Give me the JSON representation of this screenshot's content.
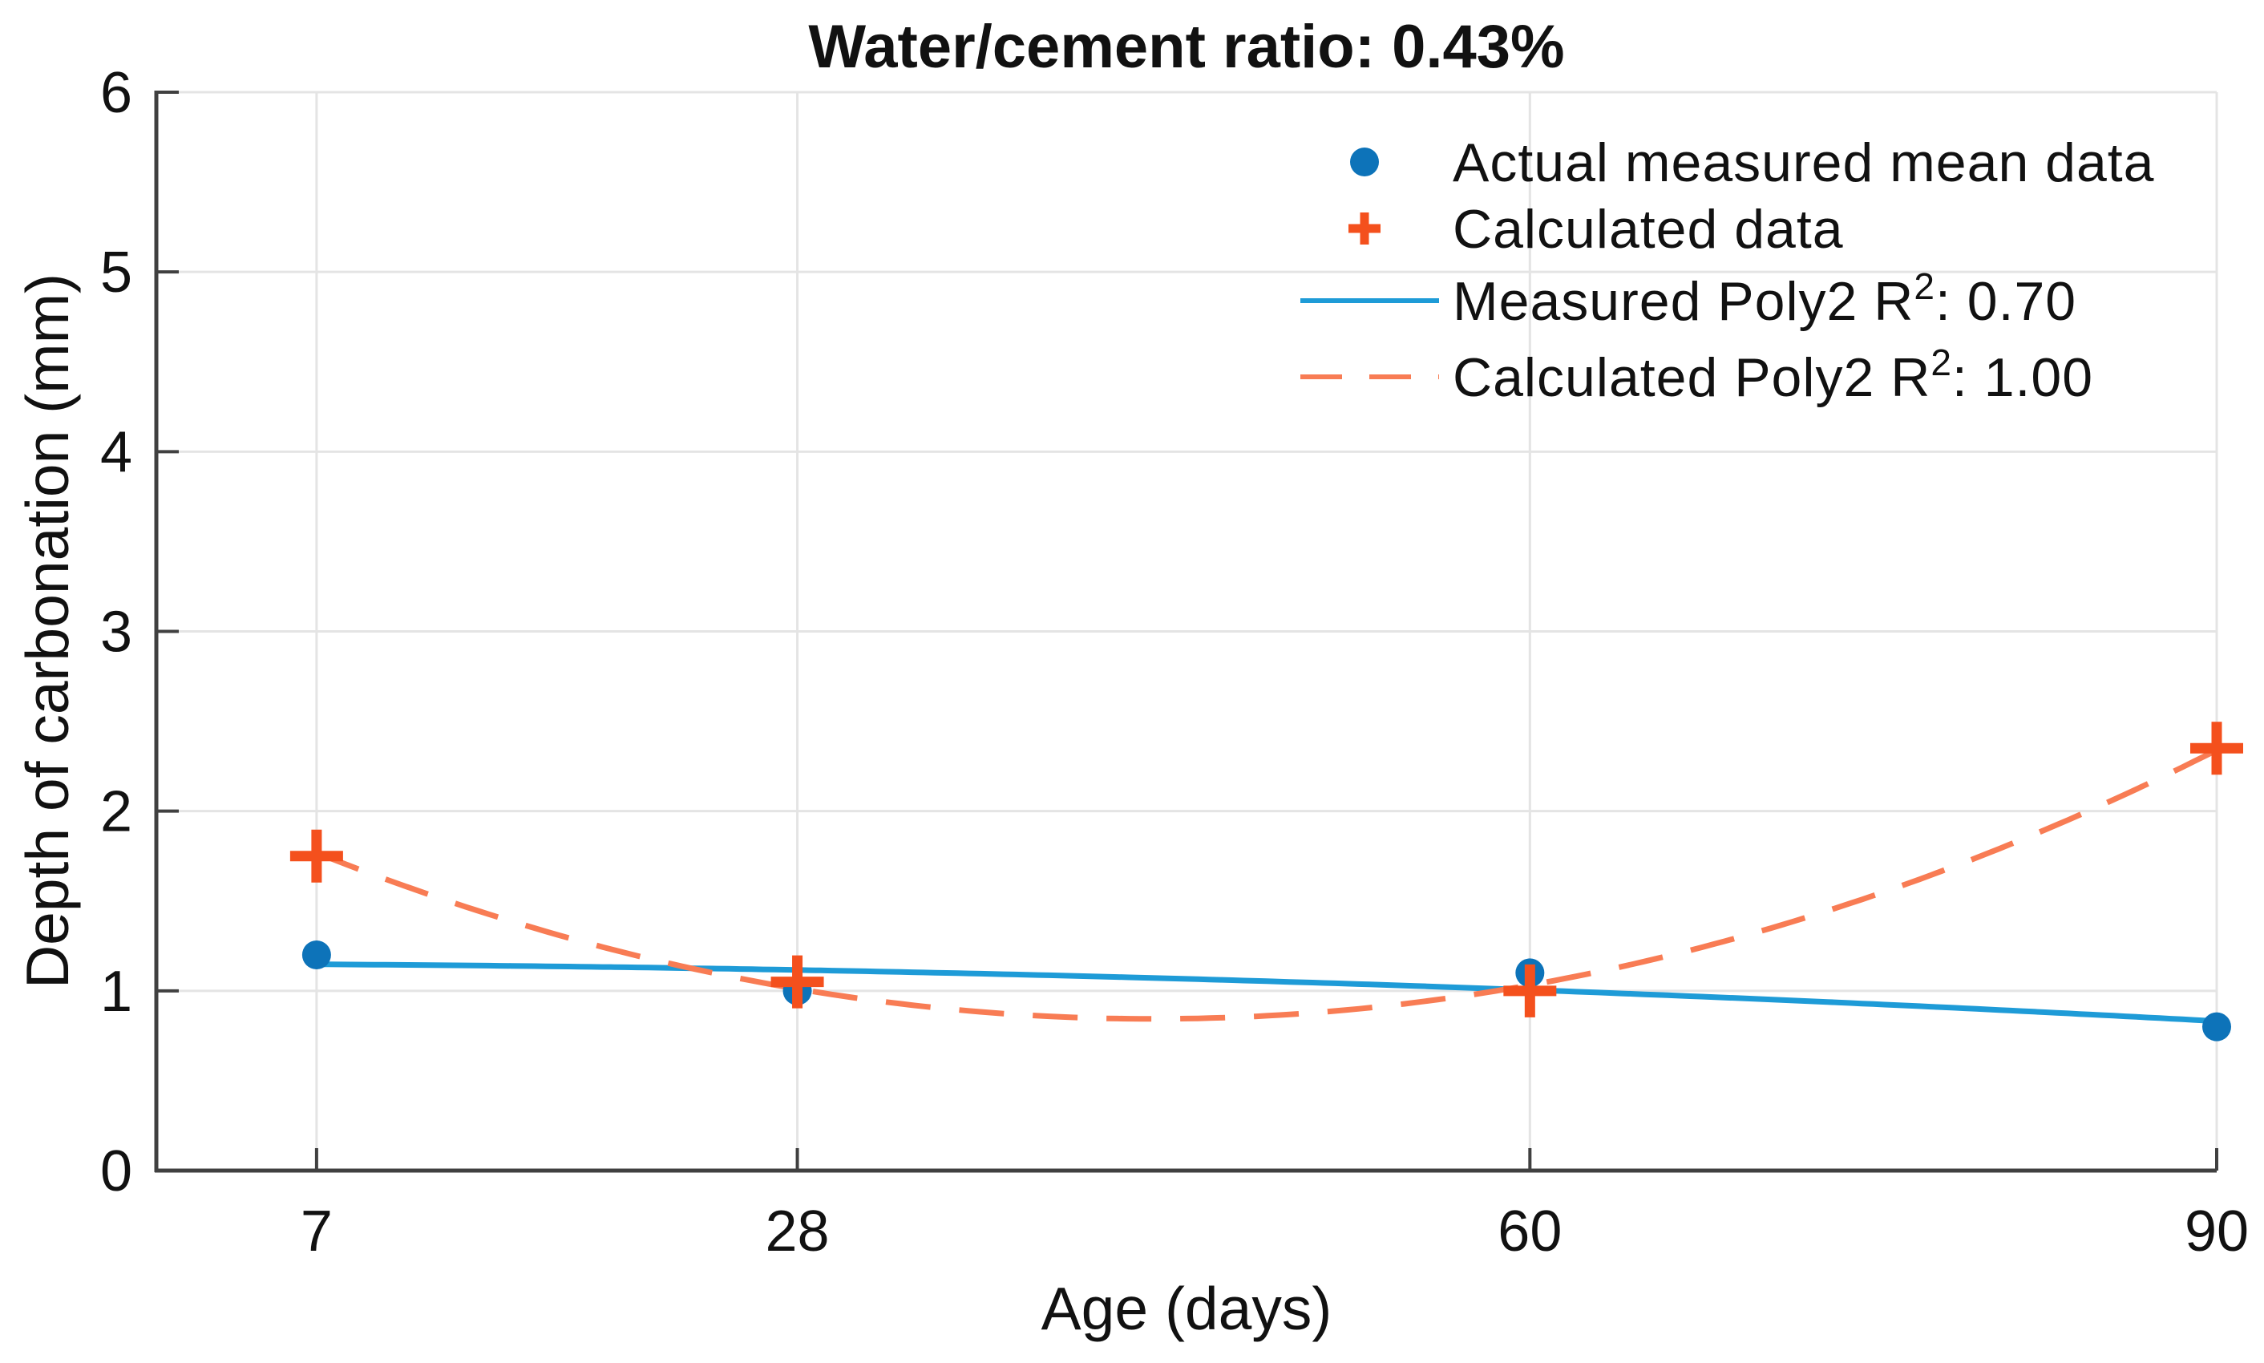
{
  "chart_data": {
    "type": "scatter",
    "title": "Water/cement ratio: 0.43%",
    "x_axis": {
      "label": "Age (days)",
      "ticks": [
        7,
        28,
        60,
        90
      ],
      "range": [
        0,
        90
      ]
    },
    "y_axis": {
      "label": "Depth of carbonation (mm)",
      "ticks": [
        0,
        1,
        2,
        3,
        4,
        5,
        6
      ],
      "range": [
        0,
        6
      ]
    },
    "grid": true,
    "x": [
      7,
      28,
      60,
      90
    ],
    "series": [
      {
        "name": "Actual measured mean data",
        "kind": "scatter",
        "marker": "circle",
        "color": "#0D73B9",
        "values": [
          1.2,
          1.0,
          1.1,
          0.8
        ]
      },
      {
        "name": "Calculated data",
        "kind": "scatter",
        "marker": "plus",
        "color": "#F4501D",
        "values": [
          1.75,
          1.05,
          1.0,
          2.35
        ]
      },
      {
        "name": "Measured Poly2 R2: 0.70",
        "kind": "fit-line",
        "style": "solid",
        "color": "#1E9BD7",
        "fit_of": 0,
        "degree": 2,
        "r2": "0.70"
      },
      {
        "name": "Calculated Poly2 R2: 1.00",
        "kind": "fit-line",
        "style": "dashed",
        "color": "#F87C54",
        "fit_of": 1,
        "degree": 2,
        "r2": "1.00"
      }
    ],
    "legend": {
      "position": "upper-right",
      "items": [
        {
          "marker": "circle",
          "label": "Actual measured mean data"
        },
        {
          "marker": "plus",
          "label": "Calculated data"
        },
        {
          "marker": "solid-line",
          "label_prefix": "Measured Poly2 R",
          "label_sup": "2",
          "label_suffix": ": 0.70"
        },
        {
          "marker": "dashed-line",
          "label_prefix": "Calculated Poly2 R",
          "label_sup": "2",
          "label_suffix": ": 1.00"
        }
      ]
    },
    "colors": {
      "measured_marker": "#0D73B9",
      "measured_line": "#1E9BD7",
      "calculated_marker": "#F4501D",
      "calculated_line": "#F87C54",
      "grid": "#E4E4E4",
      "axis": "#404040",
      "text": "#111111"
    }
  }
}
